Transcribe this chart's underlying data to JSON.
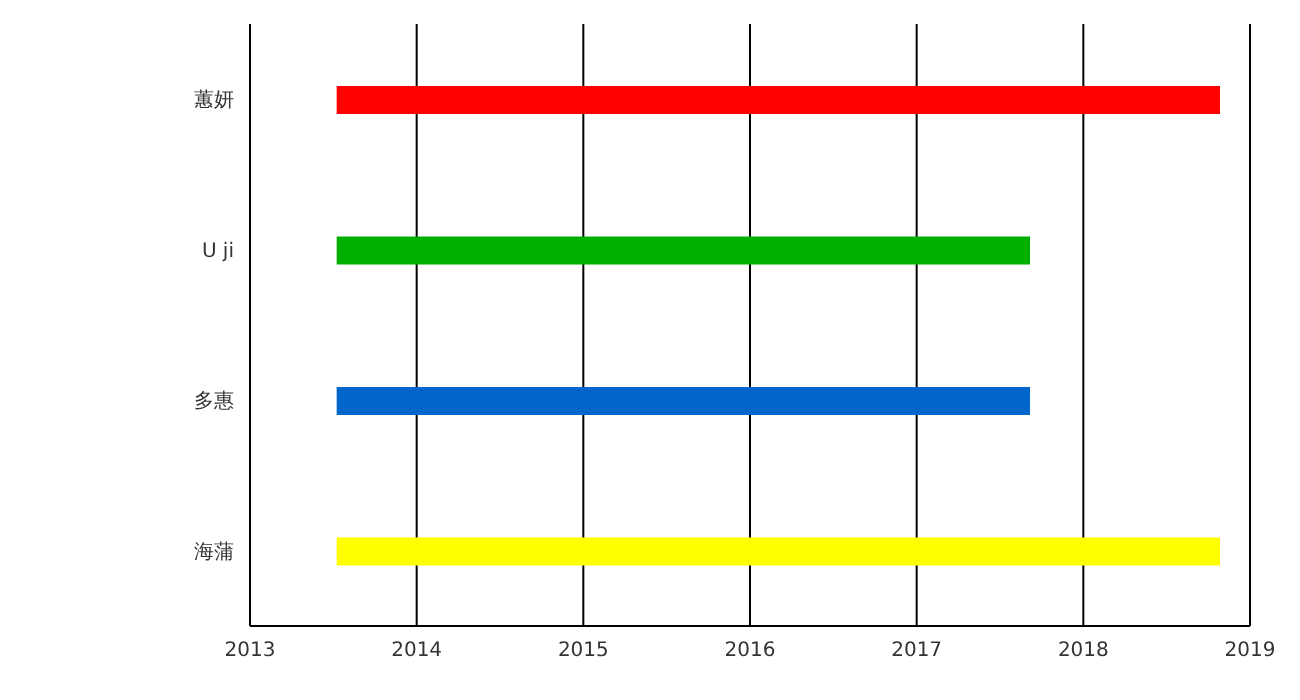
{
  "chart_data": {
    "type": "bar",
    "orientation": "horizontal",
    "categories": [
      "蕙妍",
      "U ji",
      "多惠",
      "海蒲"
    ],
    "base": [
      2013.52,
      2013.52,
      2013.52,
      2013.52
    ],
    "values": [
      5.3,
      4.16,
      4.16,
      5.3
    ],
    "colors": [
      "#ff0000",
      "#00b000",
      "#0066cc",
      "#ffff00"
    ],
    "xlim": [
      2013,
      2019
    ],
    "xticks": [
      2013,
      2014,
      2015,
      2016,
      2017,
      2018,
      2019
    ],
    "grid": "x",
    "legend": false
  }
}
